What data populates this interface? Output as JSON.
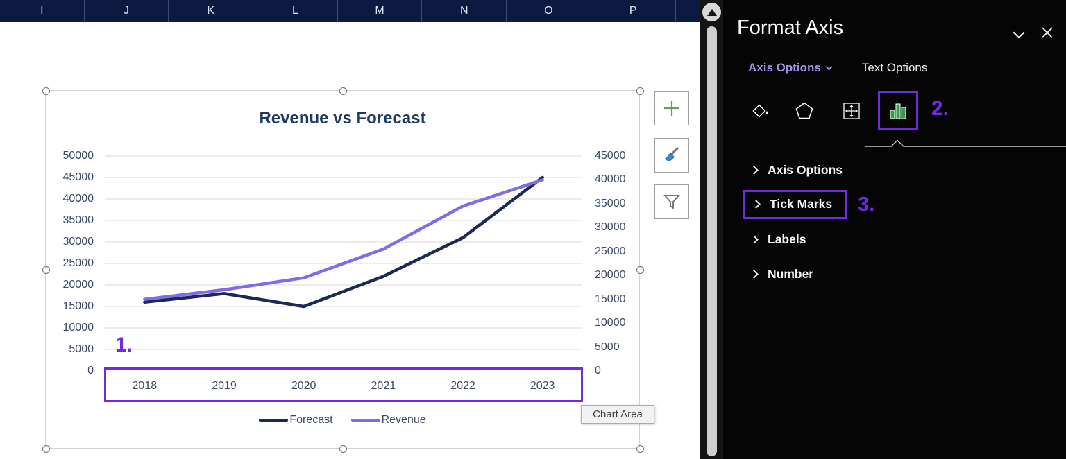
{
  "sheet": {
    "columns": [
      "I",
      "J",
      "K",
      "L",
      "M",
      "N",
      "O",
      "P"
    ]
  },
  "chart": {
    "tooltip": "Chart Area",
    "annotation_1": "1.",
    "side_buttons": [
      "chart-elements-plus-icon",
      "chart-styles-brush-icon",
      "chart-filter-funnel-icon"
    ]
  },
  "chart_data": {
    "type": "line",
    "title": "Revenue vs Forecast",
    "categories": [
      "2018",
      "2019",
      "2020",
      "2021",
      "2022",
      "2023"
    ],
    "series": [
      {
        "name": "Forecast",
        "axis": "left",
        "color": "#1b2a52",
        "values": [
          16000,
          18000,
          15000,
          22000,
          31000,
          45000
        ]
      },
      {
        "name": "Revenue",
        "axis": "right",
        "color": "#7d6ee8",
        "values": [
          15000,
          17000,
          19500,
          25500,
          34500,
          40000
        ]
      }
    ],
    "left_axis": {
      "min": 0,
      "max": 50000,
      "tick_labels": [
        "50000",
        "45000",
        "40000",
        "35000",
        "30000",
        "25000",
        "20000",
        "15000",
        "10000",
        "5000",
        "0"
      ]
    },
    "right_axis": {
      "min": 0,
      "max": 45000,
      "tick_labels": [
        "45000",
        "40000",
        "35000",
        "30000",
        "25000",
        "20000",
        "15000",
        "10000",
        "5000",
        "0"
      ]
    },
    "grid": true,
    "legend_position": "bottom"
  },
  "panel": {
    "title": "Format Axis",
    "tabs": [
      {
        "label": "Axis Options",
        "selected": true
      },
      {
        "label": "Text Options",
        "selected": false
      }
    ],
    "icon_names": [
      "fill-line-icon",
      "effects-pentagon-icon",
      "size-properties-icon",
      "axis-chart-icon",
      "chevron-down-icon",
      "close-icon"
    ],
    "icon_annotation": "2.",
    "sections": [
      {
        "label": "Axis Options",
        "highlighted": false,
        "annotation": ""
      },
      {
        "label": "Tick Marks",
        "highlighted": true,
        "annotation": "3."
      },
      {
        "label": "Labels",
        "highlighted": false,
        "annotation": ""
      },
      {
        "label": "Number",
        "highlighted": false,
        "annotation": ""
      }
    ],
    "accent_purple": "#6d2ce0",
    "tab_selected_color": "#a091e8"
  }
}
